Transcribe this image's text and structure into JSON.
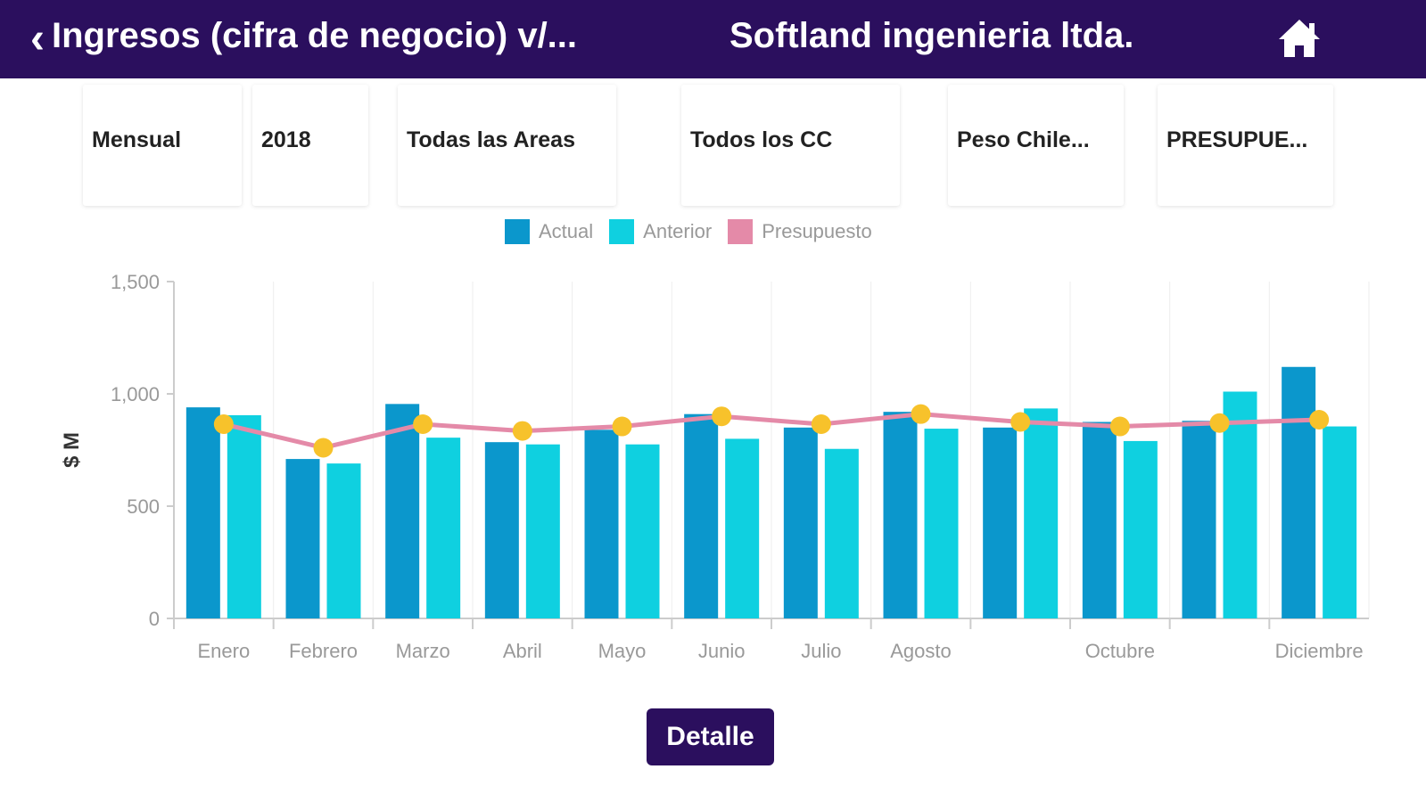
{
  "header": {
    "back_icon": "chevron-left-icon",
    "title": "Ingresos (cifra de negocio) v/...",
    "company": "Softland ingenieria ltda.",
    "home_icon": "home-icon",
    "color": "#2b0f5e"
  },
  "filters": [
    "Mensual",
    "2018",
    "Todas las Areas",
    "Todos los CC",
    "Peso Chile...",
    "PRESUPUE..."
  ],
  "detail_button": "Detalle",
  "chart_data": {
    "type": "bar",
    "title": "",
    "xlabel": "",
    "ylabel": "$ M",
    "ylim": [
      0,
      1500
    ],
    "yticks": [
      0,
      500,
      1000,
      1500
    ],
    "ytick_labels": [
      "0",
      "500",
      "1,000",
      "1,500"
    ],
    "grid": "vertical",
    "legend_position": "top",
    "categories": [
      "Enero",
      "Febrero",
      "Marzo",
      "Abril",
      "Mayo",
      "Junio",
      "Julio",
      "Agosto",
      "",
      "Octubre",
      "",
      "Diciembre"
    ],
    "series": [
      {
        "name": "Actual",
        "type": "bar",
        "color": "#0b97cc",
        "values": [
          940,
          710,
          955,
          785,
          840,
          910,
          850,
          920,
          850,
          875,
          880,
          1120
        ]
      },
      {
        "name": "Anterior",
        "type": "bar",
        "color": "#0fd0e0",
        "values": [
          905,
          690,
          805,
          775,
          775,
          800,
          755,
          845,
          935,
          790,
          1010,
          855
        ]
      },
      {
        "name": "Presupuesto",
        "type": "line",
        "color": "#e48aa8",
        "marker_color": "#f7c22b",
        "values": [
          865,
          760,
          865,
          835,
          855,
          900,
          865,
          910,
          875,
          855,
          870,
          885
        ]
      }
    ]
  }
}
